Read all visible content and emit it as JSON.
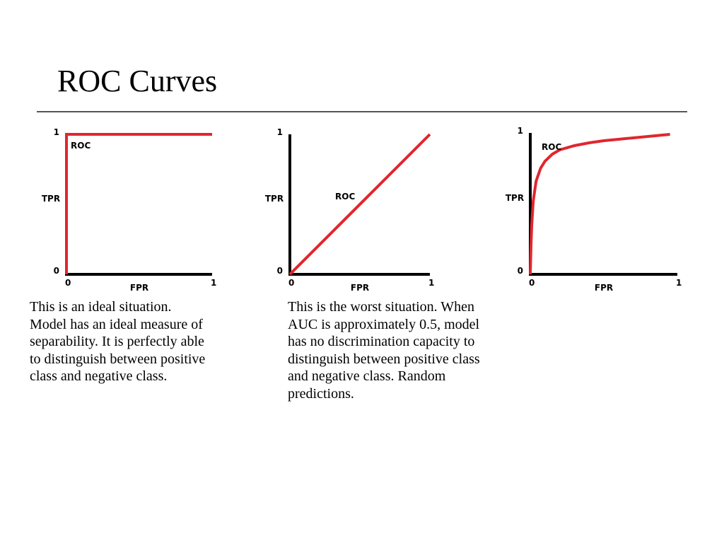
{
  "slide": {
    "title": "ROC Curves"
  },
  "captions": {
    "ideal": "This is an ideal situation. Model has an ideal measure of separability. It is perfectly able to distinguish between positive class and negative class.",
    "worst": "This is the worst situation. When AUC is approximately 0.5, model has no discrimination capacity to distinguish between positive class and negative class. Random predictions."
  },
  "colors": {
    "curve": "#e0262e",
    "axis": "#000000"
  },
  "chart_data": [
    {
      "type": "line",
      "id": "ideal",
      "xlabel": "FPR",
      "ylabel": "TPR",
      "xlim": [
        0,
        1
      ],
      "ylim": [
        0,
        1
      ],
      "grid": false,
      "x_ticks": [
        "0",
        "1"
      ],
      "y_ticks": [
        "0",
        "1"
      ],
      "series": [
        {
          "name": "ROC",
          "x": [
            0,
            0,
            1
          ],
          "y": [
            0,
            1,
            1
          ]
        }
      ]
    },
    {
      "type": "line",
      "id": "worst",
      "xlabel": "FPR",
      "ylabel": "TPR",
      "xlim": [
        0,
        1
      ],
      "ylim": [
        0,
        1
      ],
      "grid": false,
      "x_ticks": [
        "0",
        "1"
      ],
      "y_ticks": [
        "0",
        "1"
      ],
      "series": [
        {
          "name": "ROC",
          "x": [
            0,
            1
          ],
          "y": [
            0,
            1
          ]
        }
      ]
    },
    {
      "type": "line",
      "id": "good",
      "xlabel": "FPR",
      "ylabel": "TPR",
      "xlim": [
        0,
        1
      ],
      "ylim": [
        0,
        1
      ],
      "grid": false,
      "x_ticks": [
        "0",
        "1"
      ],
      "y_ticks": [
        "0",
        "1"
      ],
      "series": [
        {
          "name": "ROC",
          "x": [
            0,
            0.005,
            0.01,
            0.02,
            0.04,
            0.07,
            0.1,
            0.15,
            0.2,
            0.3,
            0.4,
            0.5,
            0.6,
            0.7,
            0.8,
            0.9,
            0.95
          ],
          "y": [
            0,
            0.2,
            0.35,
            0.52,
            0.66,
            0.75,
            0.8,
            0.85,
            0.88,
            0.91,
            0.93,
            0.945,
            0.955,
            0.965,
            0.975,
            0.985,
            0.99
          ]
        }
      ]
    }
  ]
}
